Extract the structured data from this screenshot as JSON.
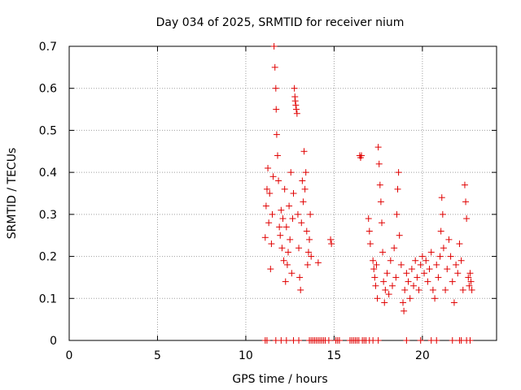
{
  "chart_data": {
    "type": "scatter",
    "title": "Day 034 of 2025, SRMTID for receiver nium",
    "xlabel": "GPS time / hours",
    "ylabel": "SRMTID / TECUs",
    "xlim": [
      0,
      24.2
    ],
    "ylim": [
      0,
      0.7
    ],
    "x_ticks": [
      0,
      5,
      10,
      15,
      20
    ],
    "y_ticks": [
      0,
      0.1,
      0.2,
      0.3,
      0.4,
      0.5,
      0.6,
      0.7
    ],
    "x_tick_labels": [
      "0",
      "5",
      "10",
      "15",
      "20"
    ],
    "y_tick_labels": [
      "0",
      "0.1",
      "0.2",
      "0.3",
      "0.4",
      "0.5",
      "0.6",
      "0.7"
    ],
    "grid": true,
    "marker": "+",
    "color": "#e00000",
    "series": [
      {
        "name": "SRMTID",
        "points": [
          [
            11.1,
            0.245
          ],
          [
            11.15,
            0.32
          ],
          [
            11.2,
            0.36
          ],
          [
            11.25,
            0.41
          ],
          [
            11.3,
            0.28
          ],
          [
            11.35,
            0.35
          ],
          [
            11.4,
            0.17
          ],
          [
            11.45,
            0.23
          ],
          [
            11.5,
            0.3
          ],
          [
            11.55,
            0.39
          ],
          [
            11.6,
            0.7
          ],
          [
            11.65,
            0.65
          ],
          [
            11.7,
            0.6
          ],
          [
            11.72,
            0.55
          ],
          [
            11.75,
            0.49
          ],
          [
            11.8,
            0.44
          ],
          [
            11.85,
            0.38
          ],
          [
            11.9,
            0.27
          ],
          [
            11.95,
            0.25
          ],
          [
            12.0,
            0.31
          ],
          [
            12.05,
            0.22
          ],
          [
            12.1,
            0.29
          ],
          [
            12.15,
            0.19
          ],
          [
            12.2,
            0.36
          ],
          [
            12.25,
            0.14
          ],
          [
            12.3,
            0.27
          ],
          [
            12.35,
            0.18
          ],
          [
            12.4,
            0.21
          ],
          [
            12.45,
            0.32
          ],
          [
            12.5,
            0.24
          ],
          [
            12.55,
            0.4
          ],
          [
            12.6,
            0.16
          ],
          [
            12.65,
            0.29
          ],
          [
            12.7,
            0.35
          ],
          [
            12.75,
            0.6
          ],
          [
            12.78,
            0.58
          ],
          [
            12.8,
            0.57
          ],
          [
            12.83,
            0.56
          ],
          [
            12.86,
            0.55
          ],
          [
            12.9,
            0.54
          ],
          [
            12.95,
            0.3
          ],
          [
            13.0,
            0.22
          ],
          [
            13.05,
            0.15
          ],
          [
            13.1,
            0.12
          ],
          [
            13.15,
            0.28
          ],
          [
            13.2,
            0.38
          ],
          [
            13.25,
            0.33
          ],
          [
            13.3,
            0.45
          ],
          [
            13.35,
            0.36
          ],
          [
            13.4,
            0.4
          ],
          [
            13.45,
            0.26
          ],
          [
            13.5,
            0.18
          ],
          [
            13.55,
            0.21
          ],
          [
            13.6,
            0.24
          ],
          [
            13.65,
            0.3
          ],
          [
            13.7,
            0.2
          ],
          [
            14.1,
            0.185
          ],
          [
            14.8,
            0.24
          ],
          [
            14.85,
            0.23
          ],
          [
            16.45,
            0.44
          ],
          [
            16.5,
            0.435
          ],
          [
            16.55,
            0.44
          ],
          [
            16.95,
            0.29
          ],
          [
            17.0,
            0.26
          ],
          [
            17.05,
            0.23
          ],
          [
            17.2,
            0.19
          ],
          [
            17.25,
            0.17
          ],
          [
            17.3,
            0.15
          ],
          [
            17.35,
            0.13
          ],
          [
            17.4,
            0.18
          ],
          [
            17.45,
            0.1
          ],
          [
            17.5,
            0.46
          ],
          [
            17.55,
            0.42
          ],
          [
            17.6,
            0.37
          ],
          [
            17.65,
            0.33
          ],
          [
            17.7,
            0.28
          ],
          [
            17.75,
            0.21
          ],
          [
            17.8,
            0.14
          ],
          [
            17.85,
            0.09
          ],
          [
            17.9,
            0.12
          ],
          [
            18.0,
            0.16
          ],
          [
            18.1,
            0.11
          ],
          [
            18.2,
            0.19
          ],
          [
            18.3,
            0.13
          ],
          [
            18.4,
            0.22
          ],
          [
            18.5,
            0.15
          ],
          [
            18.55,
            0.3
          ],
          [
            18.6,
            0.36
          ],
          [
            18.65,
            0.4
          ],
          [
            18.7,
            0.25
          ],
          [
            18.8,
            0.18
          ],
          [
            18.9,
            0.09
          ],
          [
            18.95,
            0.07
          ],
          [
            19.0,
            0.12
          ],
          [
            19.1,
            0.16
          ],
          [
            19.2,
            0.14
          ],
          [
            19.3,
            0.1
          ],
          [
            19.4,
            0.17
          ],
          [
            19.5,
            0.13
          ],
          [
            19.6,
            0.19
          ],
          [
            19.7,
            0.15
          ],
          [
            19.8,
            0.12
          ],
          [
            19.9,
            0.18
          ],
          [
            20.0,
            0.2
          ],
          [
            20.1,
            0.16
          ],
          [
            20.2,
            0.19
          ],
          [
            20.3,
            0.14
          ],
          [
            20.4,
            0.17
          ],
          [
            20.5,
            0.21
          ],
          [
            20.6,
            0.12
          ],
          [
            20.7,
            0.1
          ],
          [
            20.8,
            0.18
          ],
          [
            20.9,
            0.15
          ],
          [
            21.0,
            0.2
          ],
          [
            21.05,
            0.26
          ],
          [
            21.1,
            0.34
          ],
          [
            21.15,
            0.3
          ],
          [
            21.2,
            0.22
          ],
          [
            21.3,
            0.12
          ],
          [
            21.4,
            0.17
          ],
          [
            21.5,
            0.24
          ],
          [
            21.6,
            0.2
          ],
          [
            21.7,
            0.14
          ],
          [
            21.8,
            0.09
          ],
          [
            21.9,
            0.18
          ],
          [
            22.0,
            0.16
          ],
          [
            22.1,
            0.23
          ],
          [
            22.2,
            0.19
          ],
          [
            22.3,
            0.12
          ],
          [
            22.4,
            0.37
          ],
          [
            22.45,
            0.33
          ],
          [
            22.5,
            0.29
          ],
          [
            22.6,
            0.15
          ],
          [
            22.65,
            0.13
          ],
          [
            22.7,
            0.16
          ],
          [
            22.75,
            0.14
          ],
          [
            22.8,
            0.12
          ]
        ]
      }
    ],
    "zero_markers_x": [
      11.1,
      11.2,
      11.7,
      12.0,
      12.3,
      12.7,
      13.0,
      13.6,
      13.7,
      13.8,
      13.9,
      14.0,
      14.1,
      14.2,
      14.3,
      14.4,
      14.5,
      14.7,
      15.1,
      15.2,
      15.3,
      15.9,
      16.0,
      16.1,
      16.2,
      16.3,
      16.4,
      16.6,
      16.7,
      16.8,
      17.0,
      17.2,
      17.5,
      19.1,
      19.9,
      20.5,
      20.8,
      21.7,
      22.1,
      22.2,
      22.5,
      22.7
    ]
  }
}
